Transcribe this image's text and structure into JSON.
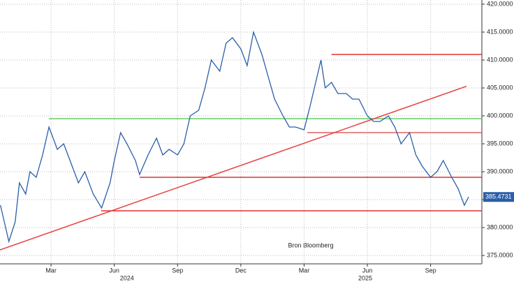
{
  "chart_data": {
    "type": "line",
    "annotation": "Bron Bloomberg",
    "xlim": [
      -0.42,
      22.43
    ],
    "ylim": [
      373.5,
      420.75
    ],
    "grid": true,
    "xticks": [
      {
        "value": 2,
        "label": "Mar"
      },
      {
        "value": 5,
        "label": "Jun"
      },
      {
        "value": 8,
        "label": "Sep"
      },
      {
        "value": 11,
        "label": "Dec"
      },
      {
        "value": 14,
        "label": "Mar"
      },
      {
        "value": 17,
        "label": "Jun"
      },
      {
        "value": 20,
        "label": "Sep"
      }
    ],
    "year_ticks": [
      {
        "value": 5.6,
        "label": "2024"
      },
      {
        "value": 16.9,
        "label": "2025"
      }
    ],
    "yticks": [
      {
        "value": 375,
        "label": "375.0000"
      },
      {
        "value": 380,
        "label": "380.0000"
      },
      {
        "value": 385,
        "label": "385.0000"
      },
      {
        "value": 390,
        "label": "390.0000"
      },
      {
        "value": 395,
        "label": "395.0000"
      },
      {
        "value": 400,
        "label": "400.0000"
      },
      {
        "value": 405,
        "label": "405.0000"
      },
      {
        "value": 410,
        "label": "410.0000"
      },
      {
        "value": 415,
        "label": "415.0000"
      },
      {
        "value": 420,
        "label": "420.0000"
      }
    ],
    "series": [
      {
        "color": "#2a5ea8",
        "x": [
          -0.4,
          0,
          0.3,
          0.5,
          0.8,
          1,
          1.3,
          1.6,
          1.9,
          2.3,
          2.6,
          3,
          3.3,
          3.6,
          4,
          4.4,
          4.8,
          5,
          5.3,
          5.6,
          6,
          6.2,
          6.6,
          7,
          7.3,
          7.6,
          8,
          8.3,
          8.6,
          9,
          9.3,
          9.6,
          10,
          10.3,
          10.6,
          11,
          11.3,
          11.6,
          12,
          12.3,
          12.6,
          13,
          13.3,
          13.6,
          14,
          14.3,
          14.8,
          15,
          15.3,
          15.6,
          16,
          16.3,
          16.6,
          17,
          17.3,
          17.6,
          18,
          18.3,
          18.6,
          19,
          19.3,
          19.6,
          20,
          20.3,
          20.6,
          21,
          21.3,
          21.6,
          21.8
        ],
        "values": [
          384,
          377.5,
          381,
          388,
          386,
          390,
          389,
          393,
          398,
          394,
          395,
          391,
          388,
          390,
          386,
          383.5,
          388,
          392,
          397,
          395,
          392,
          389.5,
          393,
          396,
          393,
          394,
          393,
          395,
          400,
          401,
          405,
          410,
          408,
          413,
          414,
          412,
          409,
          415,
          411,
          407,
          403,
          400,
          398,
          398,
          397.5,
          402,
          410,
          405,
          406,
          404,
          404,
          403,
          403,
          400,
          399,
          399,
          400,
          398,
          395,
          397,
          393,
          391,
          389,
          390,
          392,
          389,
          387,
          384,
          385.4731
        ]
      }
    ],
    "lines": [
      {
        "color": "#e03030",
        "x": [
          15.3,
          22.43
        ],
        "y": [
          411,
          411
        ]
      },
      {
        "color": "#e06060",
        "x": [
          14.15,
          22.43
        ],
        "y": [
          397,
          397
        ]
      },
      {
        "color": "#e03030",
        "x": [
          6.2,
          22.43
        ],
        "y": [
          389,
          389
        ]
      },
      {
        "color": "#e03030",
        "x": [
          4.38,
          22.43
        ],
        "y": [
          383,
          383
        ]
      },
      {
        "color": "#66cc66",
        "x": [
          1.9,
          22.43
        ],
        "y": [
          399.5,
          399.5
        ]
      },
      {
        "color": "#e84040",
        "x": [
          -0.42,
          21.7
        ],
        "y": [
          376,
          405.3
        ]
      }
    ]
  }
}
